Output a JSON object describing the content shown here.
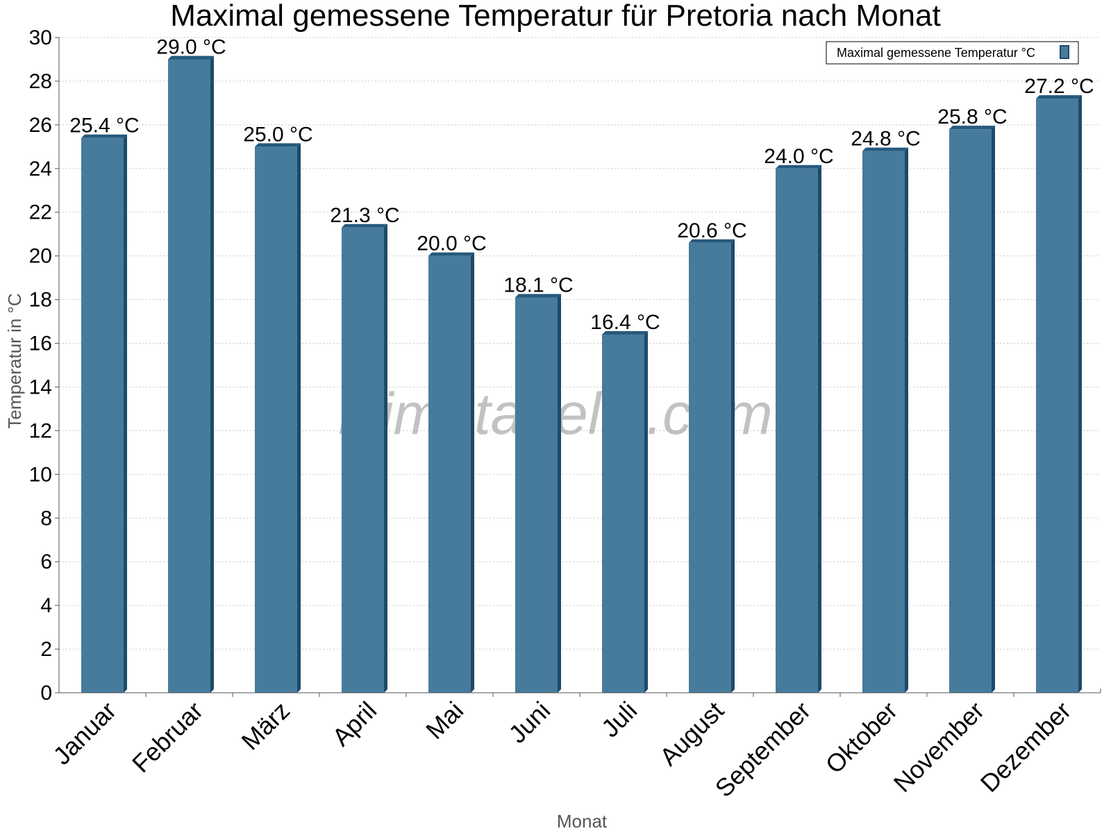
{
  "chart_data": {
    "type": "bar",
    "title": "Maximal gemessene Temperatur für Pretoria nach Monat",
    "xlabel": "Monat",
    "ylabel": "Temperatur in °C",
    "ylim": [
      0,
      30
    ],
    "yticks": [
      0,
      2,
      4,
      6,
      8,
      10,
      12,
      14,
      16,
      18,
      20,
      22,
      24,
      26,
      28,
      30
    ],
    "grid": true,
    "legend_position": "top-right",
    "categories": [
      "Januar",
      "Februar",
      "März",
      "April",
      "Mai",
      "Juni",
      "Juli",
      "August",
      "September",
      "Oktober",
      "November",
      "Dezember"
    ],
    "series": [
      {
        "name": "Maximal gemessene Temperatur °C",
        "values": [
          25.4,
          29.0,
          25.0,
          21.3,
          20.0,
          18.1,
          16.4,
          20.6,
          24.0,
          24.8,
          25.8,
          27.2
        ],
        "labels": [
          "25.4 °C",
          "29.0 °C",
          "25.0 °C",
          "21.3 °C",
          "20.0 °C",
          "18.1 °C",
          "16.4 °C",
          "20.6 °C",
          "24.0 °C",
          "24.8 °C",
          "25.8 °C",
          "27.2 °C"
        ]
      }
    ],
    "colors": {
      "bar_front": "#467b9c",
      "bar_side": "#1d4a6a",
      "bar_top": "#265a7d",
      "grid": "#c8c8c8",
      "axis": "#555555"
    }
  },
  "watermark": "klimatabelle.com"
}
